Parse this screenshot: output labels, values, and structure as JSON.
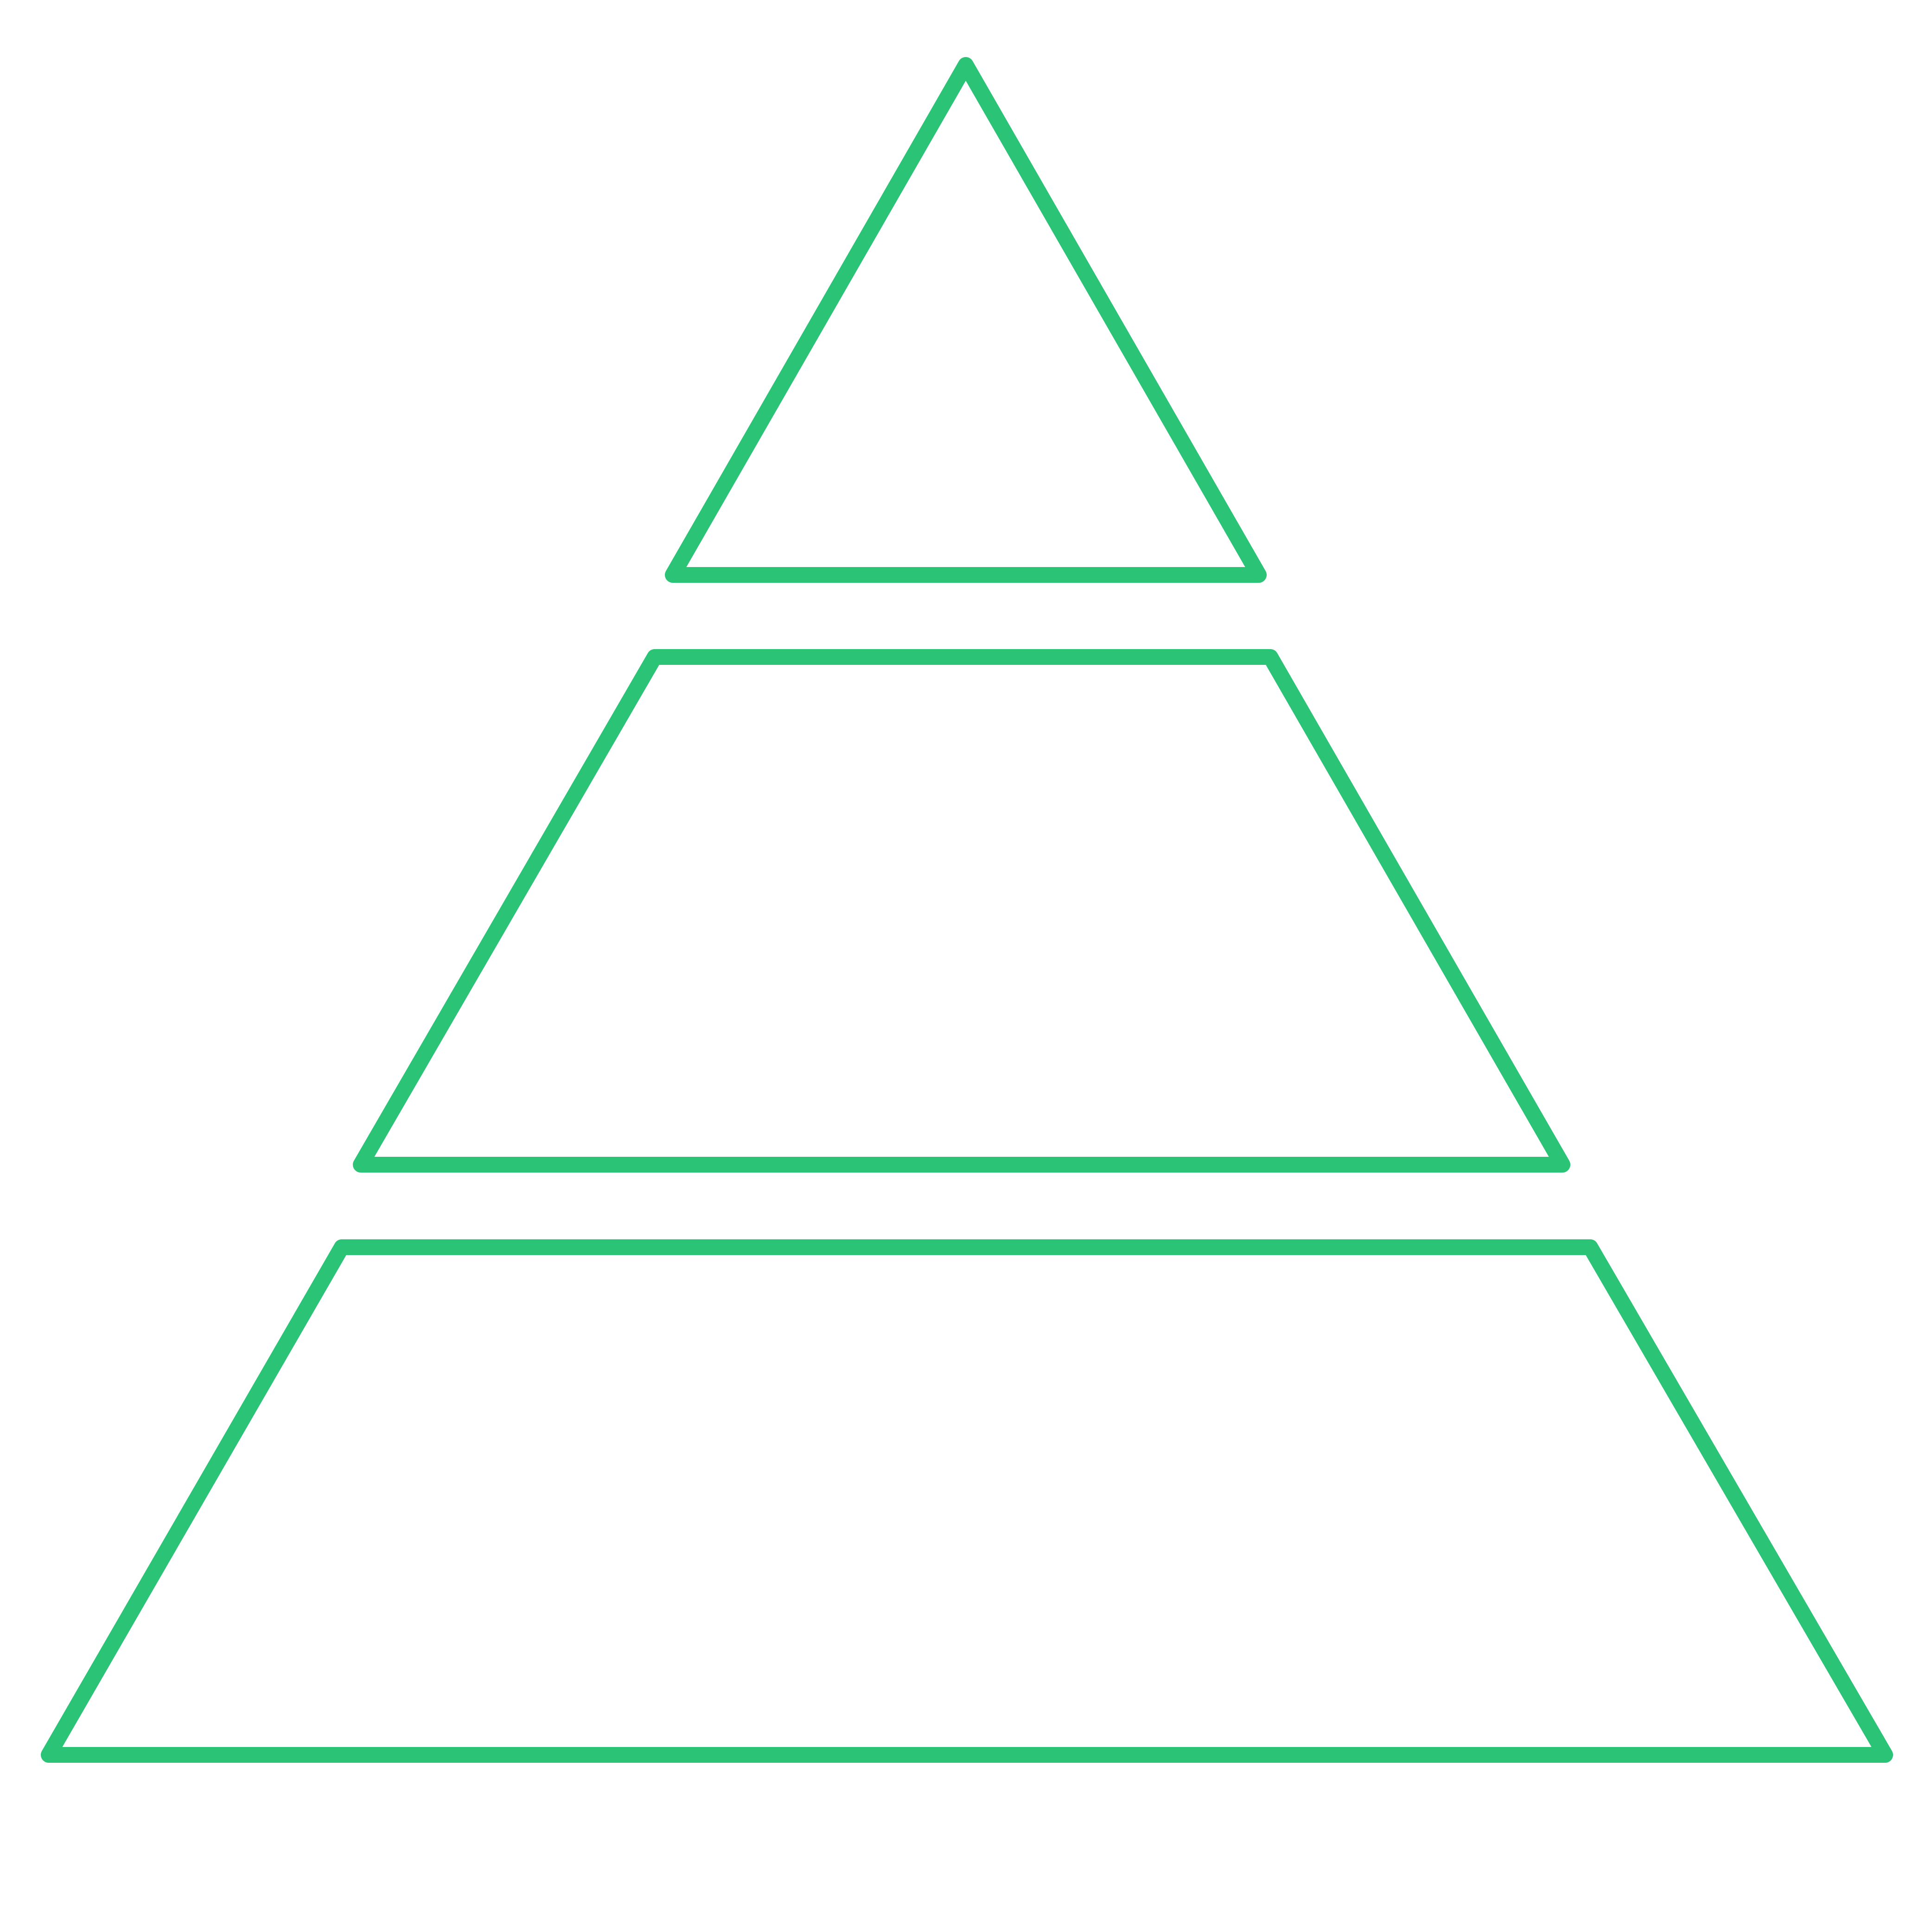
{
  "diagram": {
    "kind": "pyramid",
    "tier_count": 3,
    "outline_color": "#2bc477",
    "background_color": "#ffffff",
    "tiers": [
      {
        "name": "top",
        "shape": "triangle"
      },
      {
        "name": "middle",
        "shape": "trapezoid"
      },
      {
        "name": "bottom",
        "shape": "trapezoid"
      }
    ]
  }
}
